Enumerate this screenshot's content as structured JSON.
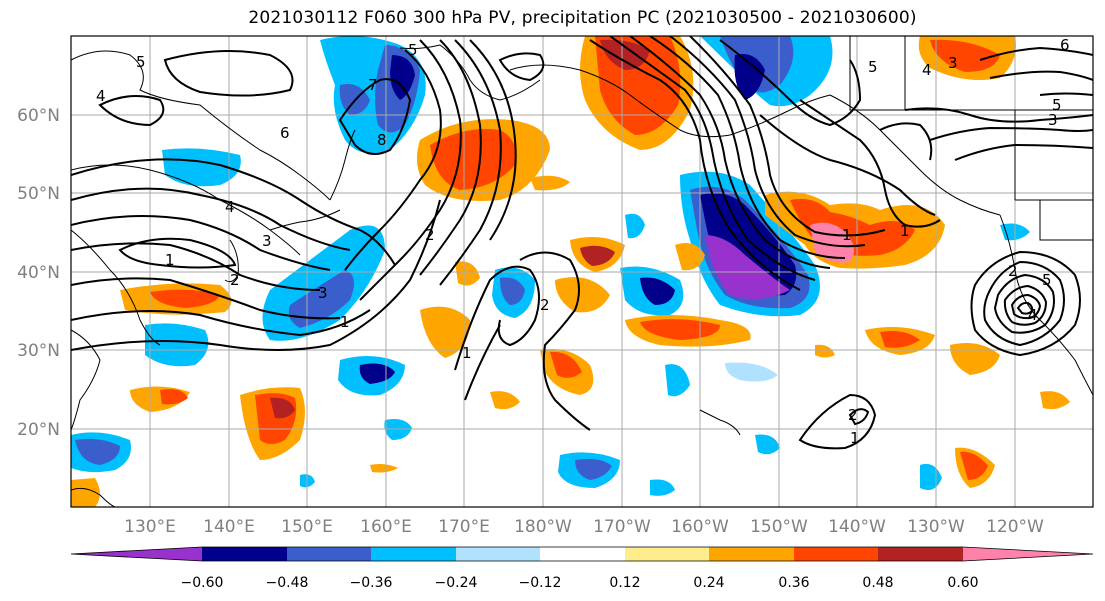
{
  "title": "2021030112 F060 300 hPa PV, precipitation PC (2021030500 - 2021030600)",
  "lat_labels": [
    "60°N",
    "50°N",
    "40°N",
    "30°N",
    "20°N"
  ],
  "lon_labels": [
    "130°E",
    "140°E",
    "150°E",
    "160°E",
    "170°E",
    "180°W",
    "170°W",
    "160°W",
    "150°W",
    "140°W",
    "130°W",
    "120°W"
  ],
  "colorbar": {
    "colors": [
      "#9932cc",
      "#00008b",
      "#3a5fcd",
      "#00bfff",
      "#b0e2ff",
      "#ffffff",
      "#ffec8b",
      "#ffa500",
      "#ff4500",
      "#b22222",
      "#ff82ab"
    ],
    "labels": [
      "−0.60",
      "−0.48",
      "−0.36",
      "−0.24",
      "−0.12",
      "0.12",
      "0.24",
      "0.36",
      "0.48",
      "0.60"
    ]
  },
  "pv_contour_labels": [
    "5",
    "4",
    "6",
    "7",
    "8",
    "5",
    "4",
    "3",
    "5",
    "3",
    "6",
    "5",
    "3",
    "4",
    "2",
    "3",
    "1",
    "2",
    "1",
    "2",
    "1",
    "2",
    "1",
    "2",
    "4",
    "5",
    "1",
    "1"
  ],
  "colors": {
    "grid": "#aaaaaa",
    "contour": "#000000",
    "coast": "#000000"
  }
}
